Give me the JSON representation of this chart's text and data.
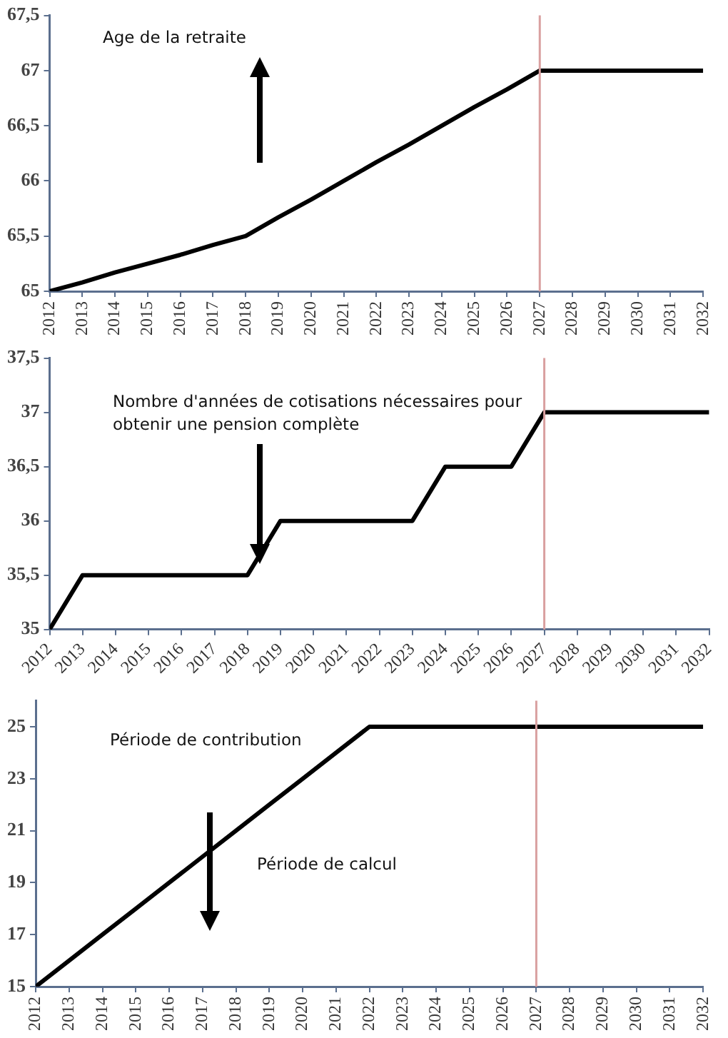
{
  "chart_data": [
    {
      "type": "line",
      "x": [
        2012,
        2013,
        2014,
        2015,
        2016,
        2017,
        2018,
        2019,
        2020,
        2021,
        2022,
        2023,
        2024,
        2025,
        2026,
        2027,
        2028,
        2029,
        2030,
        2031,
        2032
      ],
      "xlim": [
        2012,
        2032
      ],
      "xticks": [
        2012,
        2013,
        2014,
        2015,
        2016,
        2017,
        2018,
        2019,
        2020,
        2021,
        2022,
        2023,
        2024,
        2025,
        2026,
        2027,
        2028,
        2029,
        2030,
        2031,
        2032
      ],
      "series": [
        {
          "color": "#000000",
          "values": [
            65,
            65.08,
            65.17,
            65.25,
            65.33,
            65.42,
            65.5,
            65.67,
            65.83,
            66,
            66.17,
            66.33,
            66.5,
            66.67,
            66.83,
            67,
            67,
            67,
            67,
            67,
            67
          ]
        }
      ],
      "ylim": [
        65,
        67.5
      ],
      "yticks": [
        65,
        {
          "value": 65.5,
          "label": "65,5"
        },
        66,
        {
          "value": 66.5,
          "label": "66,5"
        },
        67,
        {
          "value": 67.5,
          "label": "67,5"
        }
      ],
      "ref_lines": [
        {
          "axis": "x",
          "value": 2027,
          "color": "#d9a0a0"
        }
      ],
      "marker": "none",
      "annotations": [
        "Age de la retraite"
      ]
    },
    {
      "type": "line",
      "x": [
        2012,
        2013,
        2014,
        2015,
        2016,
        2017,
        2018,
        2019,
        2020,
        2021,
        2022,
        2023,
        2024,
        2025,
        2026,
        2027,
        2028,
        2029,
        2030,
        2031,
        2032
      ],
      "xlim": [
        2012,
        2032
      ],
      "xticks": [
        2012,
        2013,
        2014,
        2015,
        2016,
        2017,
        2018,
        2019,
        2020,
        2021,
        2022,
        2023,
        2024,
        2025,
        2026,
        2027,
        2028,
        2029,
        2030,
        2031,
        2032
      ],
      "series": [
        {
          "color": "#000000",
          "values": [
            35,
            35.5,
            35.5,
            35.5,
            35.5,
            35.5,
            35.5,
            36,
            36,
            36,
            36,
            36,
            36.5,
            36.5,
            36.5,
            37,
            37,
            37,
            37,
            37,
            37
          ]
        }
      ],
      "ylim": [
        35,
        37.5
      ],
      "yticks": [
        35,
        {
          "value": 35.5,
          "label": "35,5"
        },
        36,
        {
          "value": 36.5,
          "label": "36,5"
        },
        37,
        {
          "value": 37.5,
          "label": "37,5"
        }
      ],
      "ref_lines": [
        {
          "axis": "x",
          "value": 2027,
          "color": "#d9a0a0"
        }
      ],
      "marker": "none",
      "annotations": [
        "Nombre d'années de cotisations nécessaires pour obtenir une pension complète"
      ]
    },
    {
      "type": "line",
      "x": [
        2012,
        2013,
        2014,
        2015,
        2016,
        2017,
        2018,
        2019,
        2020,
        2021,
        2022,
        2023,
        2024,
        2025,
        2026,
        2027,
        2028,
        2029,
        2030,
        2031,
        2032
      ],
      "xlim": [
        2012,
        2032
      ],
      "xticks": [
        2012,
        2013,
        2014,
        2015,
        2016,
        2017,
        2018,
        2019,
        2020,
        2021,
        2022,
        2023,
        2024,
        2025,
        2026,
        2027,
        2028,
        2029,
        2030,
        2031,
        2032
      ],
      "series": [
        {
          "color": "#000000",
          "values": [
            15,
            16,
            17,
            18,
            19,
            20,
            21,
            22,
            23,
            24,
            25,
            25,
            25,
            25,
            25,
            25,
            25,
            25,
            25,
            25,
            25
          ]
        }
      ],
      "ylim": [
        15,
        26
      ],
      "yticks": [
        15,
        17,
        19,
        21,
        23,
        25
      ],
      "ref_lines": [
        {
          "axis": "x",
          "value": 2027,
          "color": "#d9a0a0"
        }
      ],
      "marker": "none",
      "annotations": [
        "Période de contribution",
        "Période de calcul"
      ]
    }
  ]
}
